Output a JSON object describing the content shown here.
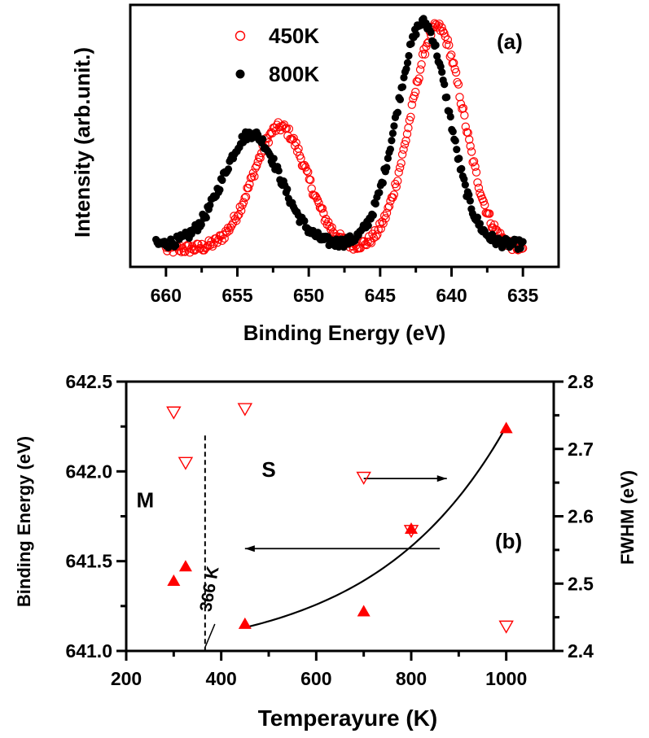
{
  "chart_data": [
    {
      "type": "scatter",
      "panel_label": "(a)",
      "xlabel": "Binding Energy (eV)",
      "ylabel": "Intensity (arb.unit.)",
      "xlim": [
        662.5,
        632.5
      ],
      "x_reversed": true,
      "ylim": [
        -0.08,
        1.1
      ],
      "y_ticks_labeled": false,
      "x_ticks": [
        660,
        655,
        650,
        645,
        640,
        635
      ],
      "x_tick_labels": [
        "660",
        "655",
        "650",
        "645",
        "640",
        "635"
      ],
      "legend_position": "top-left",
      "series": [
        {
          "name": "450K",
          "marker": "open-circle",
          "color": "#ff0000",
          "peaks": [
            {
              "center": 652.0,
              "height": 0.55,
              "width": 1.9
            },
            {
              "center": 641.0,
              "height": 1.0,
              "width": 1.85
            }
          ],
          "baseline": 0.0,
          "x_range": [
            660.0,
            635.0
          ],
          "n_points": 300
        },
        {
          "name": "800K",
          "marker": "filled-circle",
          "color": "#000000",
          "peaks": [
            {
              "center": 654.0,
              "height": 0.5,
              "width": 2.0
            },
            {
              "center": 642.0,
              "height": 1.0,
              "width": 1.8
            }
          ],
          "baseline": 0.02,
          "x_range": [
            660.7,
            635.0
          ],
          "n_points": 300
        }
      ]
    },
    {
      "type": "scatter",
      "panel_label": "(b)",
      "xlabel": "Temperayure (K)",
      "ylabel_left": "Binding Energy (eV)",
      "ylabel_right": "FWHM (eV)",
      "xlim": [
        200,
        1100
      ],
      "ylim_left": [
        641.0,
        642.5
      ],
      "ylim_right": [
        2.4,
        2.8
      ],
      "x_ticks": [
        200,
        400,
        600,
        800,
        1000
      ],
      "x_tick_labels": [
        "200",
        "400",
        "600",
        "800",
        "1000"
      ],
      "y_left_ticks": [
        641.0,
        641.5,
        642.0,
        642.5
      ],
      "y_left_tick_labels": [
        "641.0",
        "641.5",
        "642.0",
        "642.5"
      ],
      "y_right_ticks": [
        2.4,
        2.5,
        2.6,
        2.7,
        2.8
      ],
      "y_right_tick_labels": [
        "2.4",
        "2.5",
        "2.6",
        "2.7",
        "2.8"
      ],
      "series": [
        {
          "name": "",
          "axis": "left",
          "marker": "filled-triangle-up",
          "color": "#ff0000",
          "x": [
            300,
            325,
            450,
            700,
            800,
            1000
          ],
          "y": [
            641.39,
            641.47,
            641.15,
            641.22,
            641.68,
            642.24
          ]
        },
        {
          "name": "",
          "axis": "right",
          "marker": "open-triangle-down",
          "color": "#ff0000",
          "x": [
            300,
            325,
            450,
            700,
            800,
            1000
          ],
          "y": [
            2.755,
            2.68,
            2.76,
            2.658,
            2.579,
            2.437
          ]
        }
      ],
      "fit_curve": {
        "x": [
          450,
          1000
        ],
        "y_start": 641.13,
        "y_end": 642.25,
        "tau": 277
      },
      "vline": {
        "x": 366,
        "label": "366 K"
      },
      "regions": [
        {
          "label": "M",
          "x": 240,
          "y": 641.8
        },
        {
          "label": "S",
          "x": 500,
          "y": 641.97
        }
      ],
      "arrows": [
        {
          "direction": "right",
          "from_x": 700,
          "to_x": 875,
          "y": 641.96
        },
        {
          "direction": "left",
          "from_x": 860,
          "to_x": 450,
          "y": 641.57
        }
      ]
    }
  ]
}
